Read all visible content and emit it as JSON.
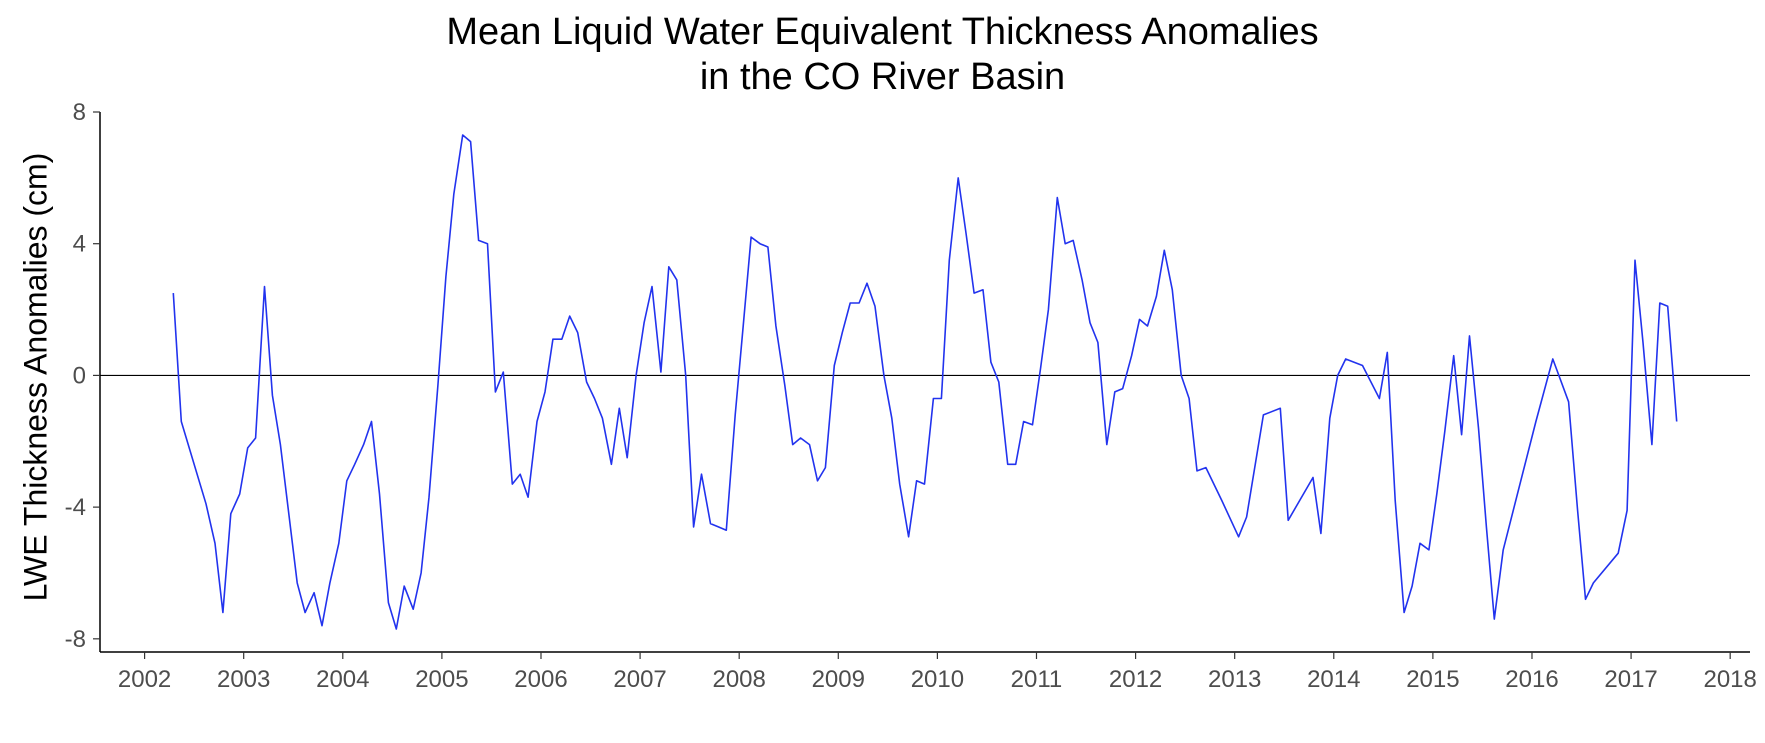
{
  "chart_data": {
    "type": "line",
    "title": "Mean Liquid Water Equivalent Thickness Anomalies\nin the CO River Basin",
    "title_lines": [
      "Mean Liquid Water Equivalent Thickness Anomalies",
      "in the CO River Basin"
    ],
    "xlabel": "",
    "ylabel": "LWE Thickness Anomalies (cm)",
    "xlim": [
      2001.55,
      2018.2
    ],
    "ylim": [
      -8.4,
      8.0
    ],
    "x_ticks": [
      2002,
      2003,
      2004,
      2005,
      2006,
      2007,
      2008,
      2009,
      2010,
      2011,
      2012,
      2013,
      2014,
      2015,
      2016,
      2017,
      2018
    ],
    "x_tick_labels": [
      "2002",
      "2003",
      "2004",
      "2005",
      "2006",
      "2007",
      "2008",
      "2009",
      "2010",
      "2011",
      "2012",
      "2013",
      "2014",
      "2015",
      "2016",
      "2017",
      "2018"
    ],
    "y_ticks": [
      -8,
      -4,
      0,
      4,
      8
    ],
    "y_tick_labels": [
      "-8",
      "-4",
      "0",
      "4",
      "8"
    ],
    "reference_line_y": 0,
    "grid": false,
    "line_color": "#2233ee",
    "series": [
      {
        "x": [
          2002.29,
          2002.37,
          2002.62,
          2002.71,
          2002.79,
          2002.87,
          2002.96,
          2003.04,
          2003.12,
          2003.21,
          2003.29,
          2003.37,
          2003.54,
          2003.62,
          2003.71,
          2003.79,
          2003.87,
          2003.96,
          2004.04,
          2004.12,
          2004.21,
          2004.29,
          2004.37,
          2004.46,
          2004.54,
          2004.62,
          2004.71,
          2004.79,
          2004.87,
          2004.96,
          2005.04,
          2005.12,
          2005.21,
          2005.29,
          2005.37,
          2005.46,
          2005.54,
          2005.62,
          2005.71,
          2005.79,
          2005.87,
          2005.96,
          2006.04,
          2006.12,
          2006.21,
          2006.29,
          2006.37,
          2006.46,
          2006.54,
          2006.62,
          2006.71,
          2006.79,
          2006.87,
          2006.96,
          2007.04,
          2007.12,
          2007.21,
          2007.29,
          2007.37,
          2007.46,
          2007.54,
          2007.62,
          2007.71,
          2007.79,
          2007.87,
          2007.96,
          2008.04,
          2008.12,
          2008.21,
          2008.29,
          2008.37,
          2008.46,
          2008.54,
          2008.62,
          2008.71,
          2008.79,
          2008.87,
          2008.96,
          2009.04,
          2009.12,
          2009.21,
          2009.29,
          2009.37,
          2009.46,
          2009.54,
          2009.62,
          2009.71,
          2009.79,
          2009.87,
          2009.96,
          2010.04,
          2010.12,
          2010.21,
          2010.29,
          2010.37,
          2010.46,
          2010.54,
          2010.62,
          2010.71,
          2010.79,
          2010.87,
          2010.96,
          2011.04,
          2011.12,
          2011.21,
          2011.29,
          2011.37,
          2011.46,
          2011.54,
          2011.62,
          2011.71,
          2011.79,
          2011.87,
          2011.96,
          2012.04,
          2012.12,
          2012.21,
          2012.29,
          2012.37,
          2012.46,
          2012.54,
          2012.62,
          2012.71,
          2012.87,
          2013.04,
          2013.12,
          2013.29,
          2013.46,
          2013.54,
          2013.79,
          2013.87,
          2013.96,
          2014.04,
          2014.12,
          2014.29,
          2014.46,
          2014.54,
          2014.62,
          2014.71,
          2014.79,
          2014.87,
          2014.96,
          2015.04,
          2015.12,
          2015.21,
          2015.29,
          2015.37,
          2015.46,
          2015.54,
          2015.62,
          2015.71,
          2016.04,
          2016.21,
          2016.37,
          2016.46,
          2016.54,
          2016.62,
          2016.87,
          2016.96,
          2017.04,
          2017.12,
          2017.21,
          2017.29,
          2017.37,
          2017.46
        ],
        "y": [
          2.5,
          -1.4,
          -3.9,
          -5.1,
          -7.2,
          -4.2,
          -3.6,
          -2.2,
          -1.9,
          2.7,
          -0.6,
          -2.1,
          -6.3,
          -7.2,
          -6.6,
          -7.6,
          -6.3,
          -5.1,
          -3.2,
          -2.7,
          -2.1,
          -1.4,
          -3.6,
          -6.9,
          -7.7,
          -6.4,
          -7.1,
          -6.0,
          -3.7,
          -0.3,
          3.0,
          5.5,
          7.3,
          7.1,
          4.1,
          4.0,
          -0.5,
          0.1,
          -3.3,
          -3.0,
          -3.7,
          -1.4,
          -0.5,
          1.1,
          1.1,
          1.8,
          1.3,
          -0.2,
          -0.7,
          -1.3,
          -2.7,
          -1.0,
          -2.5,
          0.0,
          1.6,
          2.7,
          0.1,
          3.3,
          2.9,
          0.0,
          -4.6,
          -3.0,
          -4.5,
          -4.6,
          -4.7,
          -1.2,
          1.5,
          4.2,
          4.0,
          3.9,
          1.5,
          -0.3,
          -2.1,
          -1.9,
          -2.1,
          -3.2,
          -2.8,
          0.3,
          1.3,
          2.2,
          2.2,
          2.8,
          2.1,
          0.0,
          -1.3,
          -3.3,
          -4.9,
          -3.2,
          -3.3,
          -0.7,
          -0.7,
          3.5,
          6.0,
          4.3,
          2.5,
          2.6,
          0.4,
          -0.2,
          -2.7,
          -2.7,
          -1.4,
          -1.5,
          0.2,
          2.0,
          5.4,
          4.0,
          4.1,
          2.9,
          1.6,
          1.0,
          -2.1,
          -0.5,
          -0.4,
          0.6,
          1.7,
          1.5,
          2.4,
          3.8,
          2.6,
          0.0,
          -0.7,
          -2.9,
          -2.8,
          -3.8,
          -4.9,
          -4.3,
          -1.2,
          -1.0,
          -4.4,
          -3.1,
          -4.8,
          -1.3,
          0.0,
          0.5,
          0.3,
          -0.7,
          0.7,
          -3.8,
          -7.2,
          -6.4,
          -5.1,
          -5.3,
          -3.6,
          -1.7,
          0.6,
          -1.8,
          1.2,
          -1.6,
          -4.6,
          -7.4,
          -5.3,
          -1.4,
          0.5,
          -0.8,
          -4.1,
          -6.8,
          -6.3,
          -5.4,
          -4.1,
          3.5,
          1.0,
          -2.1,
          2.2,
          2.1,
          -1.4
        ]
      }
    ]
  }
}
